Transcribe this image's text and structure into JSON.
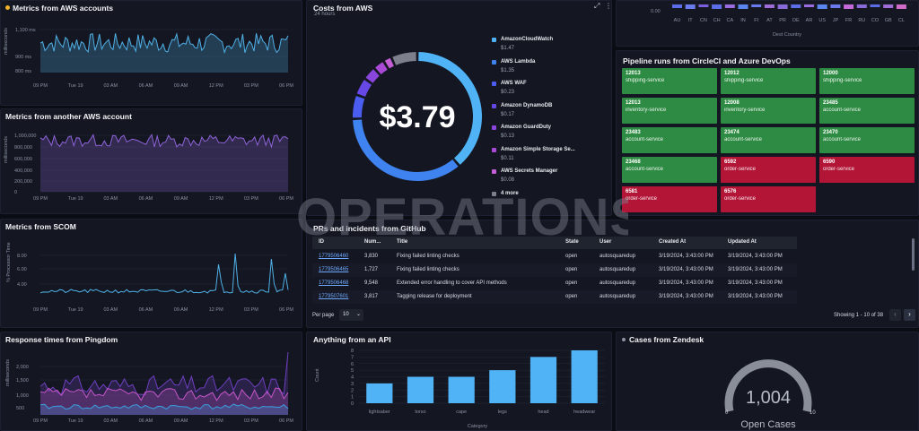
{
  "panels": {
    "aws_accounts": {
      "title": "Metrics from AWS accounts",
      "ylabel": "milliseconds",
      "yticks": [
        "1,100 ms",
        "900 ms",
        "800 ms"
      ],
      "xticks": [
        "09 PM",
        "Tue 19",
        "03 AM",
        "06 AM",
        "09 AM",
        "12 PM",
        "03 PM",
        "06 PM"
      ],
      "line_color": "#4fb0e6"
    },
    "another_aws": {
      "title": "Metrics from another AWS account",
      "ylabel": "milliseconds",
      "yticks": [
        "1,000,000",
        "800,000",
        "600,000",
        "400,000",
        "200,000",
        "0"
      ],
      "xticks": [
        "09 PM",
        "Tue 19",
        "03 AM",
        "06 AM",
        "09 AM",
        "12 PM",
        "03 PM",
        "06 PM"
      ],
      "line_color": "#8e63d9"
    },
    "scom": {
      "title": "Metrics from SCOM",
      "ylabel": "% Processor Time",
      "yticks": [
        "8.00",
        "6.00",
        "4.00"
      ],
      "xticks": [
        "09 PM",
        "Tue 19",
        "03 AM",
        "06 AM",
        "09 AM",
        "12 PM",
        "03 PM",
        "06 PM"
      ],
      "line_color": "#4fb0e6"
    },
    "pingdom": {
      "title": "Response times from Pingdom",
      "ylabel": "milliseconds",
      "yticks": [
        "2,000",
        "1,500",
        "1,000",
        "500"
      ],
      "xticks": [
        "09 PM",
        "Tue 19",
        "03 AM",
        "06 AM",
        "09 AM",
        "12 PM",
        "03 PM",
        "06 PM"
      ]
    },
    "costs": {
      "title": "Costs from AWS",
      "subtitle": "24 hours",
      "total": "$3.79",
      "legend": [
        {
          "name": "AmazonCloudWatch",
          "value": "$1.47",
          "color": "#4fb3f5"
        },
        {
          "name": "AWS Lambda",
          "value": "$1.35",
          "color": "#3f83f0"
        },
        {
          "name": "AWS WAF",
          "value": "$0.23",
          "color": "#4a5df0"
        },
        {
          "name": "Amazon DynamoDB",
          "value": "$0.17",
          "color": "#6747e6"
        },
        {
          "name": "Amazon GuardDuty",
          "value": "$0.13",
          "color": "#8a45dc"
        },
        {
          "name": "Amazon Simple Storage Se...",
          "value": "$0.11",
          "color": "#a84ad6"
        },
        {
          "name": "AWS Secrets Manager",
          "value": "$0.08",
          "color": "#c35ed5"
        },
        {
          "name": "4 more",
          "value": "",
          "color": "#7e7f8c"
        }
      ]
    },
    "dest": {
      "ytick": "0.00",
      "countries": [
        "AU",
        "IT",
        "CN",
        "CH",
        "CA",
        "IN",
        "FI",
        "AT",
        "PR",
        "DE",
        "AR",
        "US",
        "JP",
        "FR",
        "RU",
        "CO",
        "GB",
        "CL"
      ],
      "xlabel": "Dest Country"
    },
    "pipeline": {
      "title": "Pipeline runs from CircleCI and Azure DevOps",
      "tiles": [
        {
          "id": "12013",
          "name": "shipping-service",
          "status": "ok"
        },
        {
          "id": "12012",
          "name": "shipping-service",
          "status": "ok"
        },
        {
          "id": "12000",
          "name": "shipping-service",
          "status": "ok"
        },
        {
          "id": "12013",
          "name": "inventory-service",
          "status": "ok"
        },
        {
          "id": "12008",
          "name": "inventory-service",
          "status": "ok"
        },
        {
          "id": "23485",
          "name": "account-service",
          "status": "ok"
        },
        {
          "id": "23483",
          "name": "account-service",
          "status": "ok"
        },
        {
          "id": "23474",
          "name": "account-service",
          "status": "ok"
        },
        {
          "id": "23470",
          "name": "account-service",
          "status": "ok"
        },
        {
          "id": "23468",
          "name": "account-service",
          "status": "ok"
        },
        {
          "id": "6592",
          "name": "order-service",
          "status": "fail"
        },
        {
          "id": "6590",
          "name": "order-service",
          "status": "fail"
        },
        {
          "id": "6581",
          "name": "order-service",
          "status": "fail"
        },
        {
          "id": "6576",
          "name": "order-service",
          "status": "fail"
        }
      ],
      "ok_color": "#2e8b43",
      "fail_color": "#b31537"
    },
    "prs": {
      "title": "PRs and incidents from GitHub",
      "columns": [
        "ID",
        "Num...",
        "Title",
        "State",
        "User",
        "Created At",
        "Updated At"
      ],
      "rows": [
        [
          "1779506460",
          "3,830",
          "Fixing failed linting checks",
          "open",
          "autosquaredup",
          "3/19/2024, 3:43:00 PM",
          "3/19/2024, 3:43:00 PM"
        ],
        [
          "1779506465",
          "1,727",
          "Fixing failed linting checks",
          "open",
          "autosquaredup",
          "3/19/2024, 3:43:00 PM",
          "3/19/2024, 3:43:00 PM"
        ],
        [
          "1779506468",
          "9,548",
          "Extended error handling to cover API methods",
          "open",
          "autosquaredup",
          "3/19/2024, 3:43:00 PM",
          "3/19/2024, 3:43:00 PM"
        ],
        [
          "1779507601",
          "3,817",
          "Tagging release for deployment",
          "open",
          "autosquaredup",
          "3/19/2024, 3:43:00 PM",
          "3/19/2024, 3:43:00 PM"
        ]
      ],
      "per_page_label": "Per page",
      "per_page_value": "10",
      "showing": "Showing 1 - 10 of 38"
    },
    "api": {
      "title": "Anything from an API",
      "xlabel": "Category",
      "ylabel": "Count"
    },
    "zendesk": {
      "title": "Cases from Zendesk",
      "value": "1,004",
      "label": "Open Cases",
      "min": "0",
      "max": "10"
    },
    "watermark": "OPERATIONS"
  },
  "chart_data": [
    {
      "type": "bar",
      "title": "Anything from an API",
      "categories": [
        "lightsaber",
        "torso",
        "cape",
        "legs",
        "head",
        "headwear"
      ],
      "values": [
        3,
        4,
        4,
        5,
        7,
        8
      ],
      "xlabel": "Category",
      "ylabel": "Count",
      "ylim": [
        0,
        8
      ],
      "yticks": [
        0,
        1,
        2,
        3,
        4,
        5,
        6,
        7,
        8
      ],
      "color": "#4fb3f5"
    },
    {
      "type": "pie",
      "title": "Costs from AWS",
      "categories": [
        "AmazonCloudWatch",
        "AWS Lambda",
        "AWS WAF",
        "Amazon DynamoDB",
        "Amazon GuardDuty",
        "Amazon Simple Storage Se...",
        "AWS Secrets Manager",
        "4 more"
      ],
      "values": [
        1.47,
        1.35,
        0.23,
        0.17,
        0.13,
        0.11,
        0.08,
        0.25
      ]
    }
  ]
}
